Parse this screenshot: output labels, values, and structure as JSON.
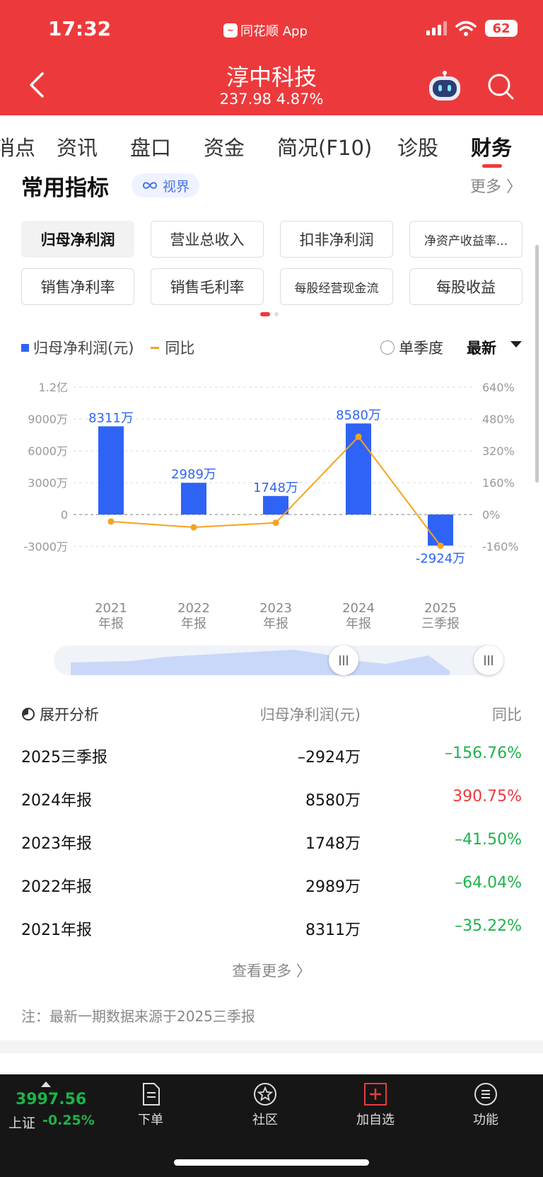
{
  "status_bar": {
    "time": "17:32",
    "app_name": "同花顺 App",
    "battery": "62"
  },
  "header": {
    "stock_name": "淳中科技",
    "stock_price": "237.98  4.87%"
  },
  "tabs": [
    {
      "label": "消点",
      "active": false
    },
    {
      "label": "资讯",
      "active": false
    },
    {
      "label": "盘口",
      "active": false
    },
    {
      "label": "资金",
      "active": false
    },
    {
      "label": "简况(F10)",
      "active": false
    },
    {
      "label": "诊股",
      "active": false
    },
    {
      "label": "财务",
      "active": true
    }
  ],
  "section": {
    "title": "常用指标",
    "badge": "视界",
    "more": "更多 〉"
  },
  "chips": [
    {
      "label": "归母净利润",
      "active": true
    },
    {
      "label": "营业总收入",
      "active": false
    },
    {
      "label": "扣非净利润",
      "active": false
    },
    {
      "label": "净资产收益率...",
      "active": false
    },
    {
      "label": "销售净利率",
      "active": false
    },
    {
      "label": "销售毛利率",
      "active": false
    },
    {
      "label": "每股经营现金流",
      "active": false
    },
    {
      "label": "每股收益",
      "active": false
    }
  ],
  "legend": {
    "bar_label": "归母净利润(元)",
    "line_label": "同比",
    "single_quarter": "单季度",
    "latest": "最新"
  },
  "chart_data": {
    "type": "bar",
    "categories": [
      "2021\n年报",
      "2022\n年报",
      "2023\n年报",
      "2024\n年报",
      "2025\n三季报"
    ],
    "category_years": [
      "2021",
      "2022",
      "2023",
      "2024",
      "2025"
    ],
    "category_periods": [
      "年报",
      "年报",
      "年报",
      "年报",
      "三季报"
    ],
    "series": [
      {
        "name": "归母净利润(元)",
        "axis": "left",
        "unit": "万",
        "values": [
          8311,
          2989,
          1748,
          8580,
          -2924
        ],
        "labels": [
          "8311万",
          "2989万",
          "1748万",
          "8580万",
          "-2924万"
        ],
        "color": "#2f63f5"
      },
      {
        "name": "同比",
        "axis": "right",
        "type": "line",
        "unit": "%",
        "values": [
          -35.22,
          -64.04,
          -41.5,
          390.75,
          -156.76
        ],
        "color": "#f6a21c"
      }
    ],
    "left_ticks": [
      "1.2亿",
      "9000万",
      "6000万",
      "3000万",
      "0",
      "-3000万"
    ],
    "left_tick_values": [
      12000,
      9000,
      6000,
      3000,
      0,
      -3000
    ],
    "right_ticks": [
      "640%",
      "480%",
      "320%",
      "160%",
      "0%",
      "-160%"
    ],
    "right_tick_values": [
      640,
      480,
      320,
      160,
      0,
      -160
    ],
    "ylim_left": [
      -3000,
      12000
    ],
    "ylim_right": [
      -160,
      640
    ],
    "grid": true
  },
  "analysis": {
    "head": "展开分析",
    "col_value": "归母净利润(元)",
    "col_yoy": "同比",
    "rows": [
      {
        "period": "2025三季报",
        "value": "–2924万",
        "yoy": "–156.76%",
        "trend": "neg"
      },
      {
        "period": "2024年报",
        "value": "8580万",
        "yoy": "390.75%",
        "trend": "pos"
      },
      {
        "period": "2023年报",
        "value": "1748万",
        "yoy": "–41.50%",
        "trend": "neg"
      },
      {
        "period": "2022年报",
        "value": "2989万",
        "yoy": "–64.04%",
        "trend": "neg"
      },
      {
        "period": "2021年报",
        "value": "8311万",
        "yoy": "–35.22%",
        "trend": "neg"
      }
    ],
    "see_more": "查看更多 〉",
    "note": "注：最新一期数据来源于2025三季报"
  },
  "bottom_bar": {
    "index_value": "3997.56",
    "index_name": "上证",
    "index_change": "-0.25%",
    "nav": [
      {
        "label": "下单",
        "icon": "order-doc-icon"
      },
      {
        "label": "社区",
        "icon": "community-star-icon"
      },
      {
        "label": "加自选",
        "icon": "add-watchlist-icon"
      },
      {
        "label": "功能",
        "icon": "menu-circle-icon"
      }
    ]
  }
}
